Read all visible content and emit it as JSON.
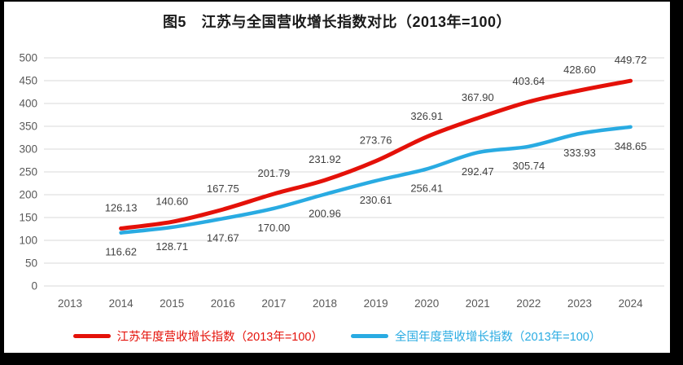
{
  "page": {
    "background_color": "#000000",
    "panel_color": "#ffffff"
  },
  "chart_data": {
    "type": "line",
    "title": "图5　江苏与全国营收增长指数对比（2013年=100）",
    "categories": [
      "2013",
      "2014",
      "2015",
      "2016",
      "2017",
      "2018",
      "2019",
      "2020",
      "2021",
      "2022",
      "2023",
      "2024"
    ],
    "y_ticks": [
      "0",
      "50",
      "100",
      "150",
      "200",
      "250",
      "300",
      "350",
      "400",
      "450",
      "500"
    ],
    "ylim": [
      0,
      500
    ],
    "grid": true,
    "legend_position": "bottom",
    "gridline_color": "#d9d9d9",
    "axis_color": "#595959",
    "label_color": "#404040",
    "series": [
      {
        "name": "江苏年度营收增长指数（2013年=100）",
        "color": "#e41109",
        "start_category": "2014",
        "values": [
          126.13,
          140.6,
          167.75,
          201.79,
          231.92,
          273.76,
          326.91,
          367.9,
          403.64,
          428.6,
          449.72
        ],
        "labels": [
          "126.13",
          "140.60",
          "167.75",
          "201.79",
          "231.92",
          "273.76",
          "326.91",
          "367.90",
          "403.64",
          "428.60",
          "449.72"
        ],
        "label_position": "above"
      },
      {
        "name": "全国年度营收增长指数（2013年=100）",
        "color": "#29abe2",
        "start_category": "2014",
        "values": [
          116.62,
          128.71,
          147.67,
          170.0,
          200.96,
          230.61,
          256.41,
          292.47,
          305.74,
          333.93,
          348.65
        ],
        "labels": [
          "116.62",
          "128.71",
          "147.67",
          "170.00",
          "200.96",
          "230.61",
          "256.41",
          "292.47",
          "305.74",
          "333.93",
          "348.65"
        ],
        "label_position": "below"
      }
    ]
  }
}
